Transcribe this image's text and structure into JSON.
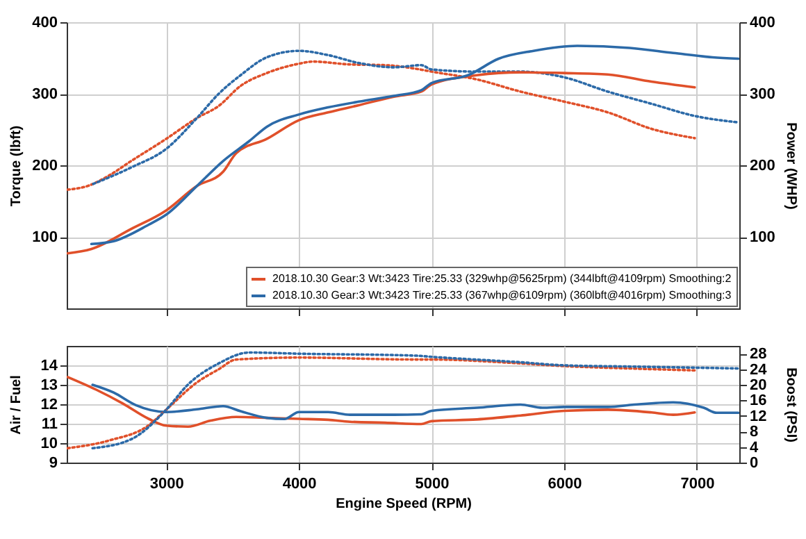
{
  "chart_data": [
    {
      "type": "line",
      "ylabel": "Torque (lbft)",
      "y2label": "Power (WHP)",
      "xlim": [
        2250,
        7320
      ],
      "xticks": [
        3000,
        4000,
        5000,
        6000,
        7000
      ],
      "ylim": [
        0,
        400
      ],
      "yticks": [
        100,
        200,
        300,
        400
      ],
      "y2lim": [
        0,
        400
      ],
      "y2ticks": [
        100,
        200,
        300,
        400
      ],
      "tick_labels": "y",
      "grid": true,
      "legend": "bottom right",
      "series": [
        {
          "name": "2018.10.30 Gear:3 Wt:3423 Tire:25.33 (329whp@5625rpm) (344lbft@4109rpm) Smoothing:2",
          "color": "#e0502a",
          "axis": "y2",
          "line_style": "solid",
          "x": [
            2257,
            2436,
            2736,
            3000,
            3231,
            3429,
            3528,
            3759,
            4000,
            4221,
            4452,
            4716,
            4923,
            5000,
            5342,
            5671,
            6000,
            6329,
            6658,
            6984
          ],
          "values": [
            77,
            83,
            111,
            137,
            171,
            191,
            217,
            237,
            263,
            274,
            284,
            296,
            303,
            313,
            326,
            330,
            329,
            327,
            317,
            309
          ]
        },
        {
          "name": "2018.10.30 Gear:3 Wt:3423 Tire:25.33 (367whp@6109rpm) (360lbft@4016rpm) Smoothing:3",
          "color": "#2c6aa8",
          "axis": "y2",
          "line_style": "solid",
          "x": [
            2436,
            2604,
            2868,
            3000,
            3231,
            3429,
            3627,
            3759,
            4000,
            4221,
            4452,
            4716,
            4923,
            5000,
            5276,
            5506,
            5769,
            6099,
            6494,
            6822,
            7118,
            7312
          ],
          "values": [
            90,
            94,
            117,
            131,
            171,
            206,
            234,
            254,
            271,
            281,
            289,
            297,
            305,
            315,
            326,
            349,
            360,
            367,
            364,
            357,
            351,
            349
          ]
        },
        {
          "color": "#e0502a",
          "axis": "y",
          "line_style": "dotted",
          "x": [
            2257,
            2406,
            2571,
            2736,
            3000,
            3231,
            3396,
            3561,
            3759,
            4000,
            4106,
            4386,
            4650,
            4881,
            5000,
            5342,
            5671,
            6000,
            6329,
            6658,
            6984
          ],
          "values": [
            166,
            171,
            186,
            206,
            237,
            266,
            283,
            311,
            329,
            342,
            345,
            341,
            340,
            335,
            331,
            320,
            303,
            289,
            274,
            251,
            238
          ]
        },
        {
          "color": "#2c6aa8",
          "axis": "y",
          "line_style": "dotted",
          "x": [
            2450,
            2736,
            3000,
            3231,
            3396,
            3561,
            3759,
            4000,
            4221,
            4452,
            4716,
            4923,
            5000,
            5342,
            5671,
            6000,
            6329,
            6658,
            6984,
            7312
          ],
          "values": [
            174,
            197,
            223,
            266,
            300,
            326,
            351,
            360,
            354,
            343,
            337,
            340,
            334,
            331,
            331,
            323,
            303,
            286,
            269,
            260
          ]
        }
      ]
    },
    {
      "type": "line",
      "xlabel": "Engine Speed (RPM)",
      "ylabel": "Air / Fuel",
      "y2label": "Boost (PSI)",
      "xlim": [
        2250,
        7320
      ],
      "xticks": [
        3000,
        4000,
        5000,
        6000,
        7000
      ],
      "ylim": [
        9,
        15
      ],
      "yticks": [
        9,
        10,
        11,
        12,
        13,
        14
      ],
      "y2lim": [
        0,
        30
      ],
      "y2ticks": [
        0,
        4,
        8,
        12,
        16,
        20,
        24,
        28
      ],
      "grid": true,
      "series": [
        {
          "color": "#e0502a",
          "axis": "y",
          "line_style": "solid",
          "x": [
            2257,
            2472,
            2670,
            2868,
            3000,
            3165,
            3330,
            3528,
            3759,
            4000,
            4221,
            4386,
            4650,
            4923,
            5000,
            5342,
            5671,
            6000,
            6329,
            6658,
            6822,
            6984
          ],
          "values": [
            13.4,
            12.75,
            12.05,
            11.25,
            10.9,
            10.85,
            11.15,
            11.35,
            11.3,
            11.25,
            11.2,
            11.1,
            11.05,
            10.98,
            11.13,
            11.22,
            11.42,
            11.66,
            11.72,
            11.58,
            11.46,
            11.58
          ]
        },
        {
          "color": "#2c6aa8",
          "axis": "y",
          "line_style": "solid",
          "x": [
            2445,
            2604,
            2769,
            3000,
            3231,
            3429,
            3561,
            3759,
            3891,
            4000,
            4221,
            4386,
            4716,
            4923,
            5000,
            5342,
            5671,
            5835,
            6000,
            6329,
            6526,
            6822,
            7052,
            7150,
            7312
          ],
          "values": [
            13.0,
            12.6,
            11.96,
            11.6,
            11.74,
            11.9,
            11.64,
            11.3,
            11.24,
            11.6,
            11.6,
            11.46,
            11.46,
            11.48,
            11.66,
            11.82,
            11.98,
            11.82,
            11.86,
            11.86,
            11.98,
            12.1,
            11.82,
            11.56,
            11.56
          ]
        },
        {
          "color": "#e0502a",
          "axis": "y2",
          "line_style": "dotted",
          "x": [
            2257,
            2571,
            2868,
            3000,
            3231,
            3396,
            3528,
            4000,
            4881,
            5000,
            5671,
            6000,
            6494,
            6984
          ],
          "values": [
            3.7,
            5.7,
            9.6,
            13.6,
            20.6,
            24.0,
            26.5,
            27.0,
            26.5,
            26.5,
            25.5,
            24.8,
            24.2,
            23.7
          ]
        },
        {
          "color": "#2c6aa8",
          "axis": "y2",
          "line_style": "dotted",
          "x": [
            2445,
            2736,
            3000,
            3165,
            3396,
            3627,
            4000,
            4881,
            5000,
            5671,
            6000,
            6494,
            7312
          ],
          "values": [
            3.7,
            6.0,
            13.6,
            20.1,
            25.5,
            28.3,
            28.0,
            27.5,
            27.2,
            25.8,
            25.0,
            24.7,
            24.2
          ]
        }
      ]
    }
  ]
}
